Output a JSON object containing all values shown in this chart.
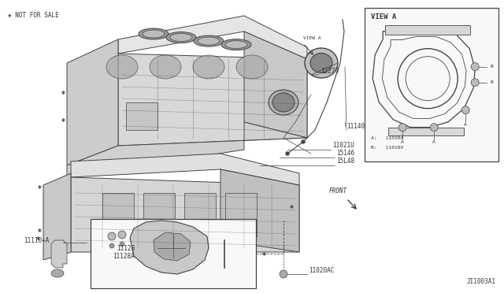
{
  "bg_color": "#ffffff",
  "lc": "#444444",
  "tc": "#333333",
  "watermark": "❖ NOT FOR SALE",
  "diagram_id": "JI1003A1",
  "view_a_label": "VIEW A",
  "view_a_legend_a": "A:   11020A",
  "view_a_legend_b": "B:   11010V",
  "label_12279": "12279",
  "label_11140": "11140",
  "label_11021U": "11021U",
  "label_15146": "15146",
  "label_15L48": "15L48",
  "label_11110A": "11110+A",
  "label_11128": "11128",
  "label_11128A": "11128A",
  "label_11020AC": "11020AC",
  "label_FRONT": "FRONT",
  "fs": 5.5,
  "fs_tiny": 4.5
}
